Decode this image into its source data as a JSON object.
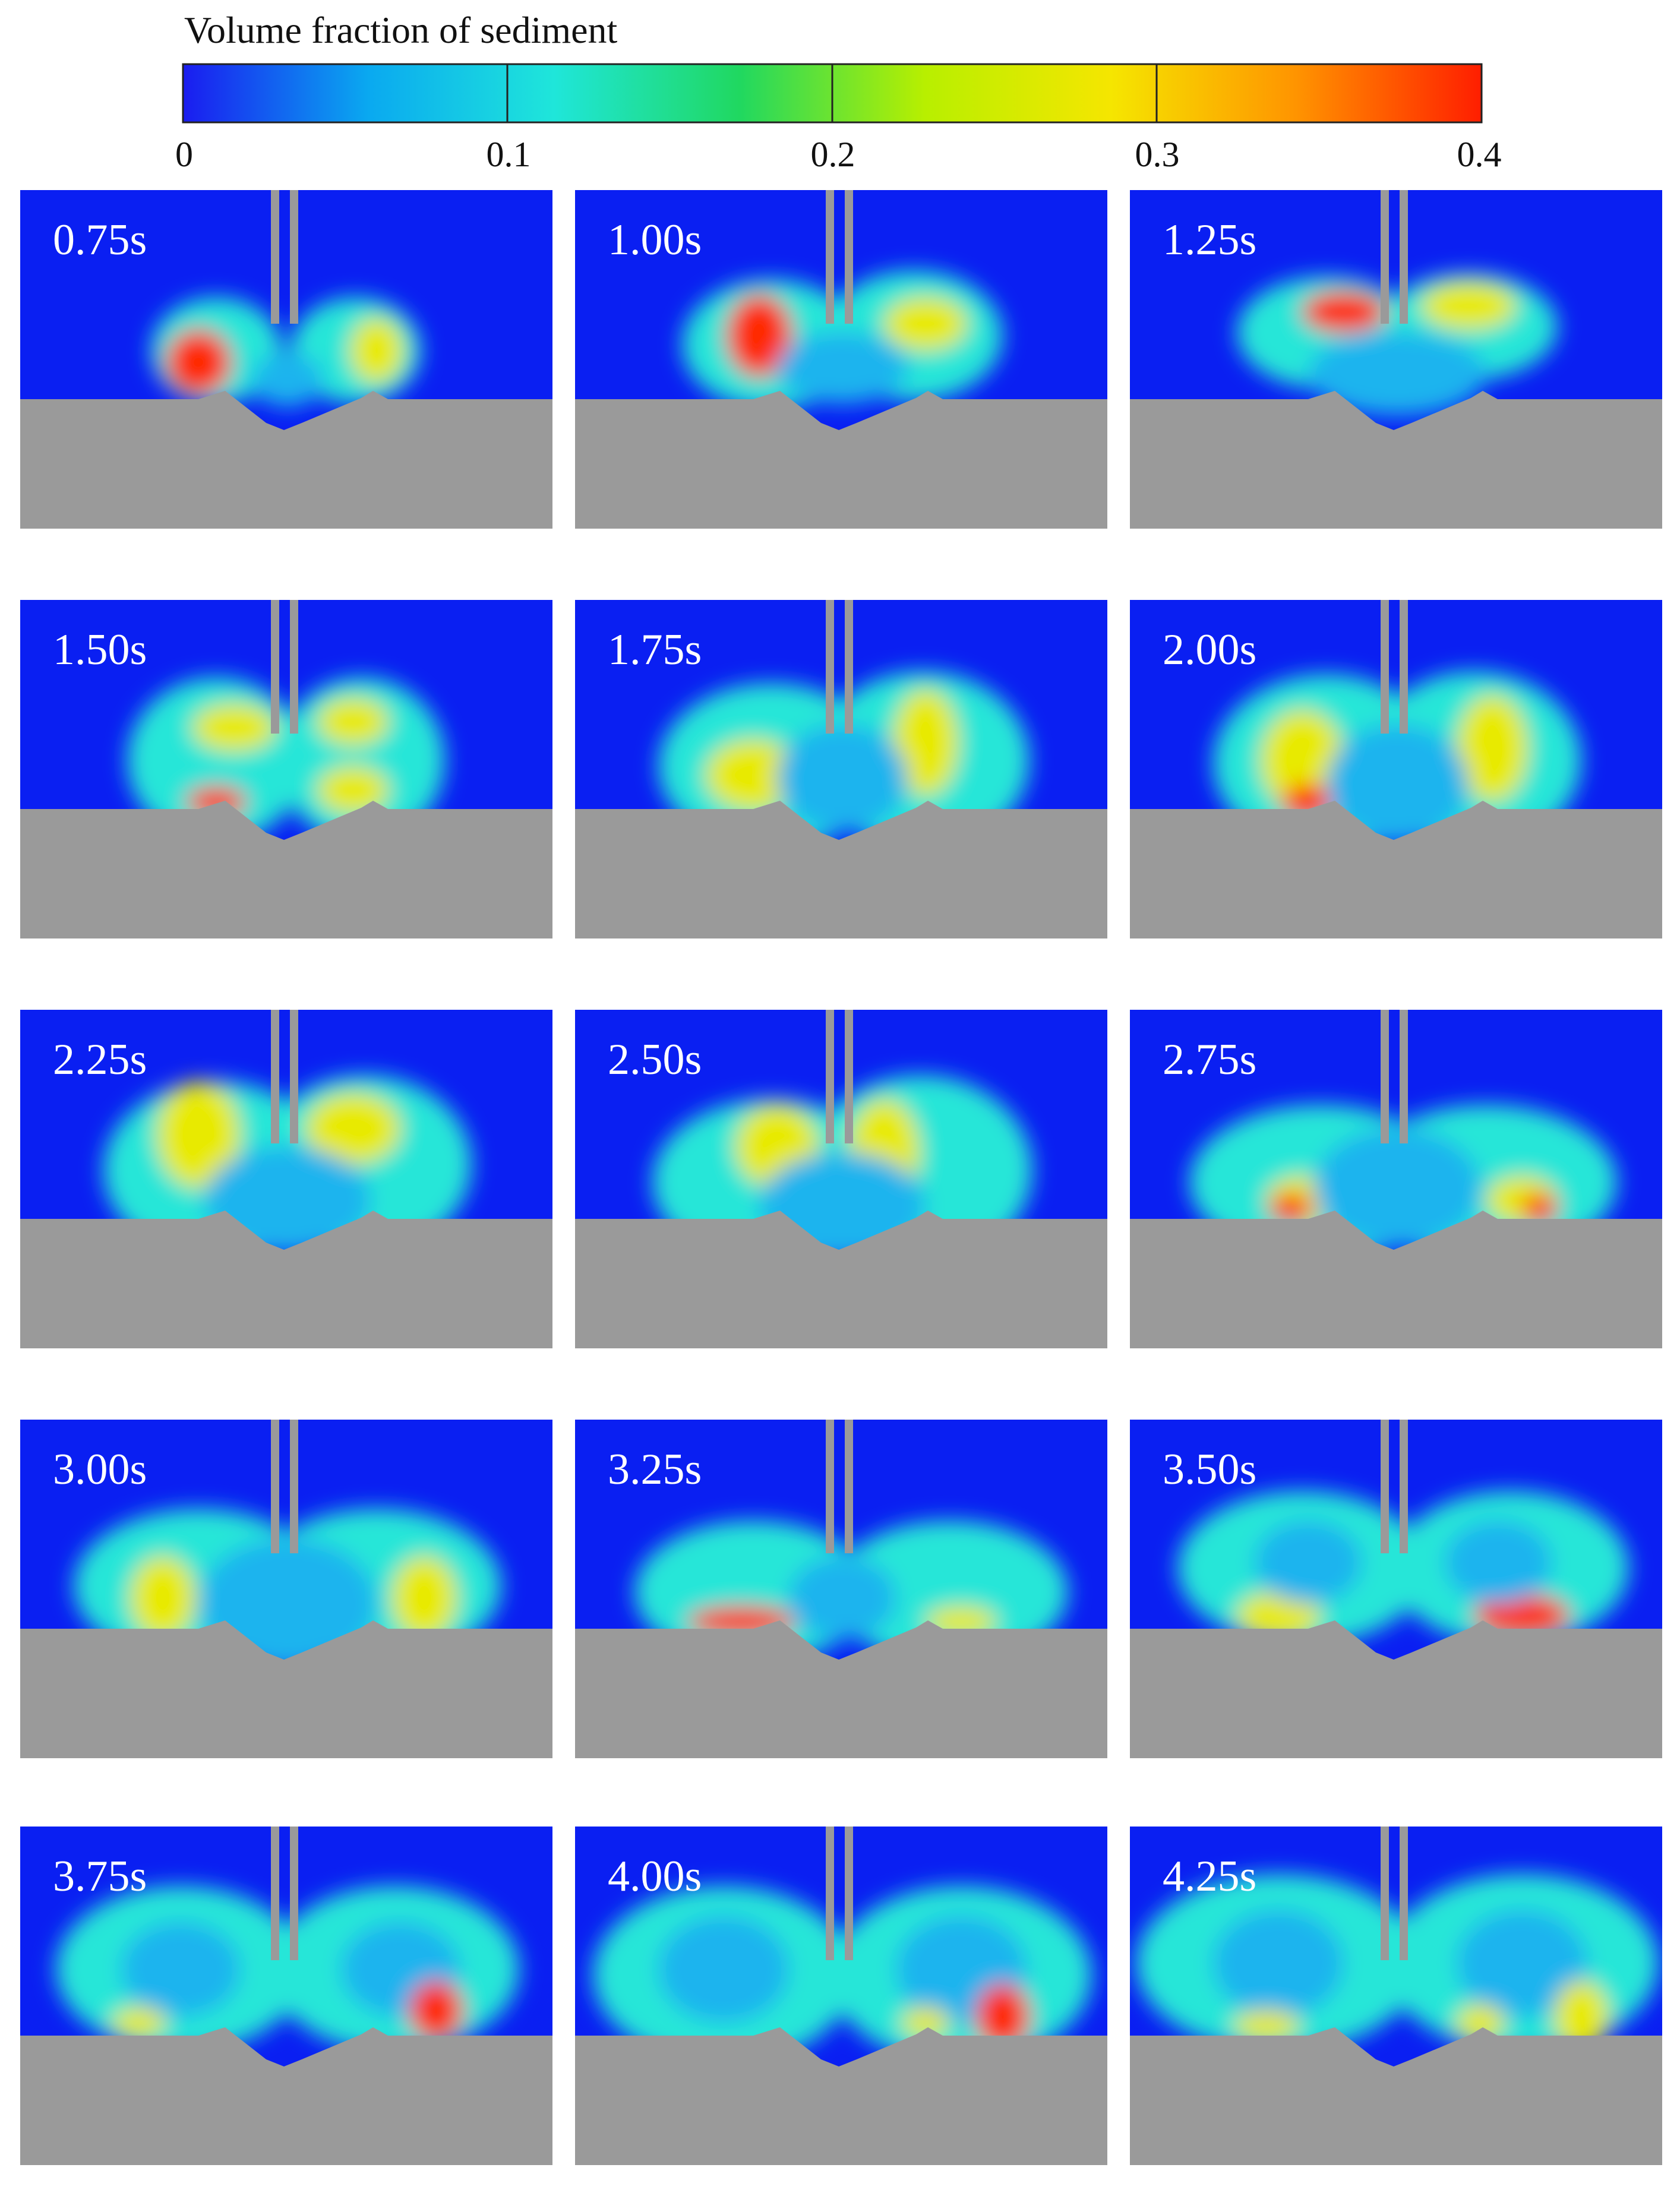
{
  "colorbar": {
    "title": "Volume fraction of sediment",
    "ticks": [
      "0",
      "0.1",
      "0.2",
      "0.3",
      "0.4"
    ],
    "range": [
      0,
      0.4
    ],
    "stops": [
      "#1a1cf0",
      "#0aa9f0",
      "#1fe6da",
      "#20d860",
      "#b8ef00",
      "#f5e600",
      "#ff9400",
      "#ff1e00"
    ]
  },
  "colors": {
    "water": "#0a1ff2",
    "bed": "#9a9a9a",
    "pipe": "#9a9a9a"
  },
  "panels": [
    {
      "time": "0.75s"
    },
    {
      "time": "1.00s"
    },
    {
      "time": "1.25s"
    },
    {
      "time": "1.50s"
    },
    {
      "time": "1.75s"
    },
    {
      "time": "2.00s"
    },
    {
      "time": "2.25s"
    },
    {
      "time": "2.50s"
    },
    {
      "time": "2.75s"
    },
    {
      "time": "3.00s"
    },
    {
      "time": "3.25s"
    },
    {
      "time": "3.50s"
    },
    {
      "time": "3.75s"
    },
    {
      "time": "4.00s"
    },
    {
      "time": "4.25s"
    }
  ]
}
